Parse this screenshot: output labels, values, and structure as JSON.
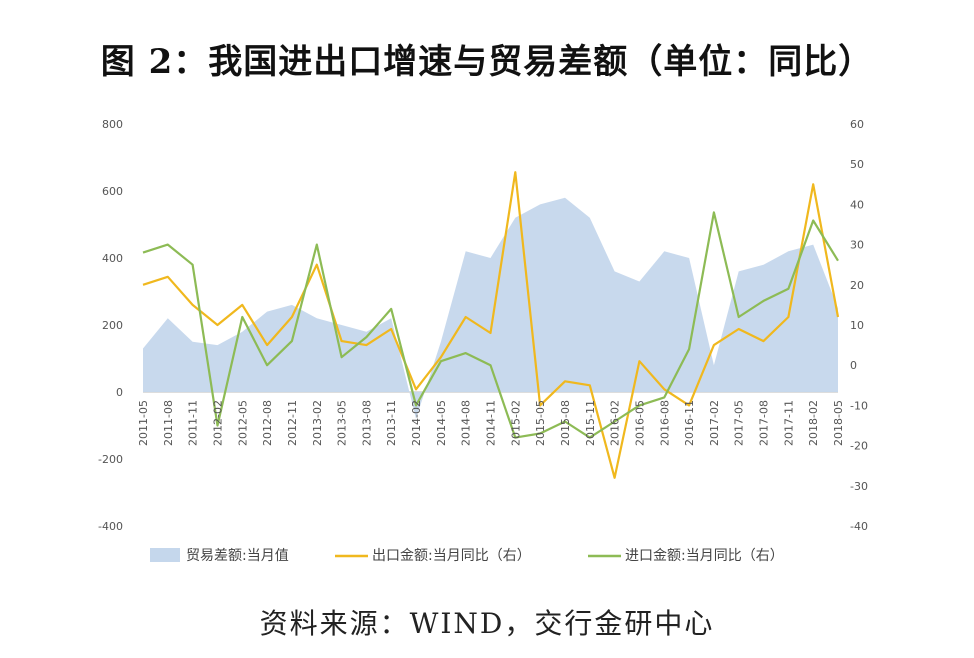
{
  "title": "图 2：我国进出口增速与贸易差额（单位：同比）",
  "source": "资料来源：WIND，交行金研中心",
  "chart_data": {
    "type": "area+line",
    "x": [
      "2011-05",
      "2011-08",
      "2011-11",
      "2012-02",
      "2012-05",
      "2012-08",
      "2012-11",
      "2013-02",
      "2013-05",
      "2013-08",
      "2013-11",
      "2014-02",
      "2014-05",
      "2014-08",
      "2014-11",
      "2015-02",
      "2015-05",
      "2015-08",
      "2015-11",
      "2016-02",
      "2016-05",
      "2016-08",
      "2016-11",
      "2017-02",
      "2017-05",
      "2017-08",
      "2017-11",
      "2018-02",
      "2018-05"
    ],
    "left_axis": {
      "ylim": [
        -400,
        800
      ],
      "ticks": [
        -400,
        -200,
        0,
        200,
        400,
        600,
        800
      ]
    },
    "right_axis": {
      "ylim": [
        -40,
        60
      ],
      "ticks": [
        -40,
        -30,
        -20,
        -10,
        0,
        10,
        20,
        30,
        40,
        50,
        60
      ]
    },
    "series": [
      {
        "name": "贸易差额:当月值",
        "type": "area",
        "axis": "left",
        "color": "#c5d7ec",
        "values": [
          130,
          220,
          150,
          140,
          180,
          240,
          260,
          220,
          200,
          180,
          220,
          -80,
          150,
          420,
          400,
          520,
          560,
          580,
          520,
          360,
          330,
          420,
          400,
          80,
          360,
          380,
          420,
          440,
          250
        ]
      },
      {
        "name": "出口金额:当月同比（右）",
        "type": "line",
        "axis": "right",
        "color": "#f0b81e",
        "values": [
          20,
          22,
          15,
          10,
          15,
          5,
          12,
          25,
          6,
          5,
          9,
          -6,
          2,
          12,
          8,
          48,
          -10,
          -4,
          -5,
          -28,
          1,
          -6,
          -10,
          5,
          9,
          6,
          12,
          45,
          12
        ]
      },
      {
        "name": "进口金额:当月同比（右）",
        "type": "line",
        "axis": "right",
        "color": "#8dbb55",
        "values": [
          28,
          30,
          25,
          -15,
          12,
          0,
          6,
          30,
          2,
          7,
          14,
          -10,
          1,
          3,
          0,
          -18,
          -17,
          -14,
          -18,
          -14,
          -10,
          -8,
          4,
          38,
          12,
          16,
          19,
          36,
          26
        ]
      }
    ]
  }
}
